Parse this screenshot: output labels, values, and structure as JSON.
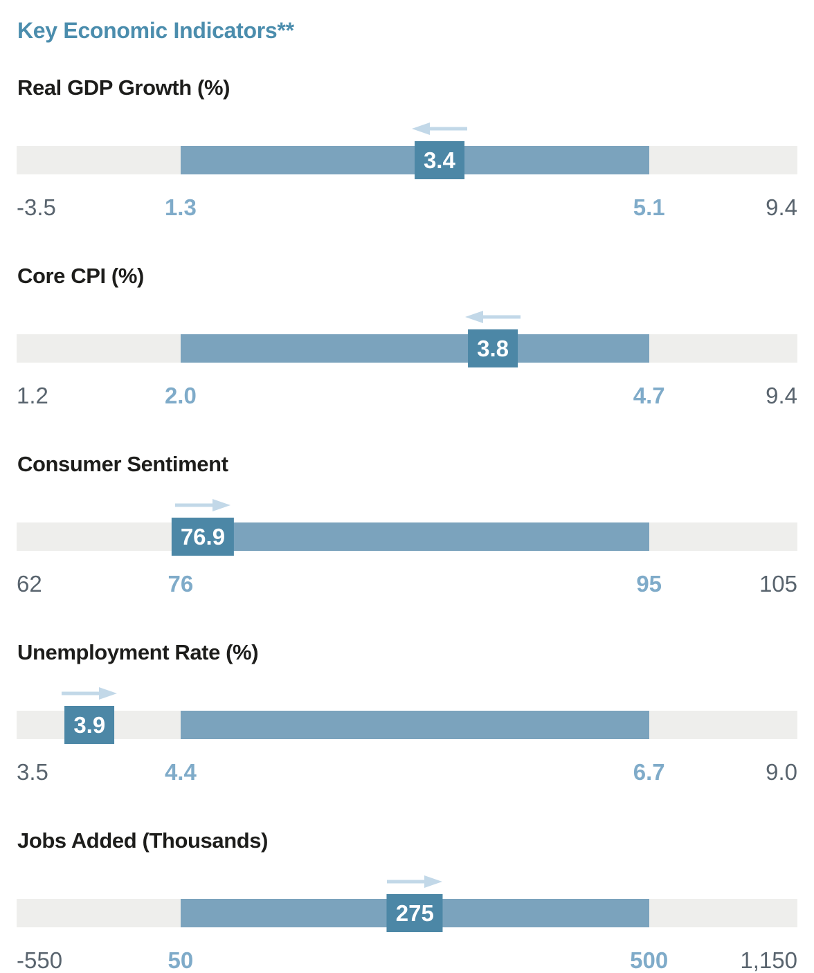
{
  "page_title": "Key Economic Indicators**",
  "colors": {
    "title_blue": "#4b8dad",
    "section_title": "#1d1d1b",
    "track": "#eeeeec",
    "range_bar": "#7ba3bd",
    "marker": "#4c87a6",
    "marker_text": "#ffffff",
    "arrow": "#c2d8e8",
    "label_blue": "#7fabc9",
    "label_gray": "#59646e"
  },
  "chart_data": {
    "type": "bullet",
    "title": "Key Economic Indicators**",
    "layout": {
      "range_start_frac": 0.21,
      "range_end_frac": 0.81,
      "grid": false
    },
    "indicators": [
      {
        "title": "Real GDP Growth (%)",
        "scale_min": -3.5,
        "range_low": 1.3,
        "range_high": 5.1,
        "scale_max": 9.4,
        "value": 3.4,
        "trend_arrow": "left",
        "labels": {
          "min": "-3.5",
          "low": "1.3",
          "high": "5.1",
          "max": "9.4",
          "value": "3.4"
        }
      },
      {
        "title": "Core CPI (%)",
        "scale_min": 1.2,
        "range_low": 2.0,
        "range_high": 4.7,
        "scale_max": 9.4,
        "value": 3.8,
        "trend_arrow": "left",
        "labels": {
          "min": "1.2",
          "low": "2.0",
          "high": "4.7",
          "max": "9.4",
          "value": "3.8"
        }
      },
      {
        "title": "Consumer Sentiment",
        "scale_min": 62,
        "range_low": 76,
        "range_high": 95,
        "scale_max": 105,
        "value": 76.9,
        "trend_arrow": "right",
        "labels": {
          "min": "62",
          "low": "76",
          "high": "95",
          "max": "105",
          "value": "76.9"
        }
      },
      {
        "title": "Unemployment Rate (%)",
        "scale_min": 3.5,
        "range_low": 4.4,
        "range_high": 6.7,
        "scale_max": 9.0,
        "value": 3.9,
        "trend_arrow": "right",
        "labels": {
          "min": "3.5",
          "low": "4.4",
          "high": "6.7",
          "max": "9.0",
          "value": "3.9"
        }
      },
      {
        "title": "Jobs Added (Thousands)",
        "scale_min": -550,
        "range_low": 50,
        "range_high": 500,
        "scale_max": 1150,
        "value": 275,
        "trend_arrow": "right",
        "labels": {
          "min": "-550",
          "low": "50",
          "high": "500",
          "max": "1,150",
          "value": "275"
        }
      }
    ]
  }
}
